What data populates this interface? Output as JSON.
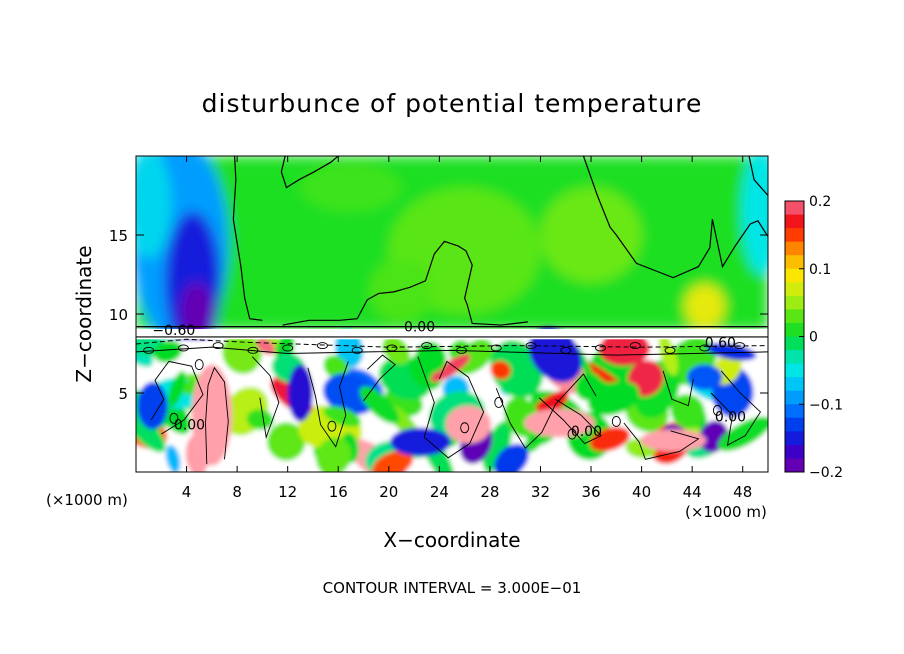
{
  "chart_data": {
    "type": "heatmap",
    "title": "disturbunce of potential temperature",
    "xlabel": "X−coordinate",
    "ylabel": "Z−coordinate",
    "x_unit_left": "(×1000 m)",
    "x_unit_right": "(×1000 m)",
    "xlim": [
      0,
      50
    ],
    "ylim": [
      0,
      20
    ],
    "x_ticks": [
      4,
      8,
      12,
      16,
      20,
      24,
      28,
      32,
      36,
      40,
      44,
      48
    ],
    "y_ticks": [
      5,
      10,
      15
    ],
    "colorbar": {
      "min": -0.2,
      "max": 0.2,
      "ticks": [
        {
          "v": 0.2,
          "label": "0.2"
        },
        {
          "v": 0.1,
          "label": "0.1"
        },
        {
          "v": 0.0,
          "label": "0"
        },
        {
          "v": -0.1,
          "label": "−0.1"
        },
        {
          "v": -0.2,
          "label": "−0.2"
        }
      ]
    },
    "contour_labels": [
      {
        "text": "−0.60",
        "x": 1.3,
        "z": 9.0
      },
      {
        "text": "0.00",
        "x": 21.2,
        "z": 9.2
      },
      {
        "text": "0.60",
        "x": 45.0,
        "z": 8.2
      },
      {
        "text": "0.00",
        "x": 3.0,
        "z": 3.0
      },
      {
        "text": "0.00",
        "x": 34.4,
        "z": 2.6
      },
      {
        "text": "0.00",
        "x": 45.8,
        "z": 3.5
      }
    ],
    "footer": "CONTOUR INTERVAL = 3.000E−01"
  }
}
